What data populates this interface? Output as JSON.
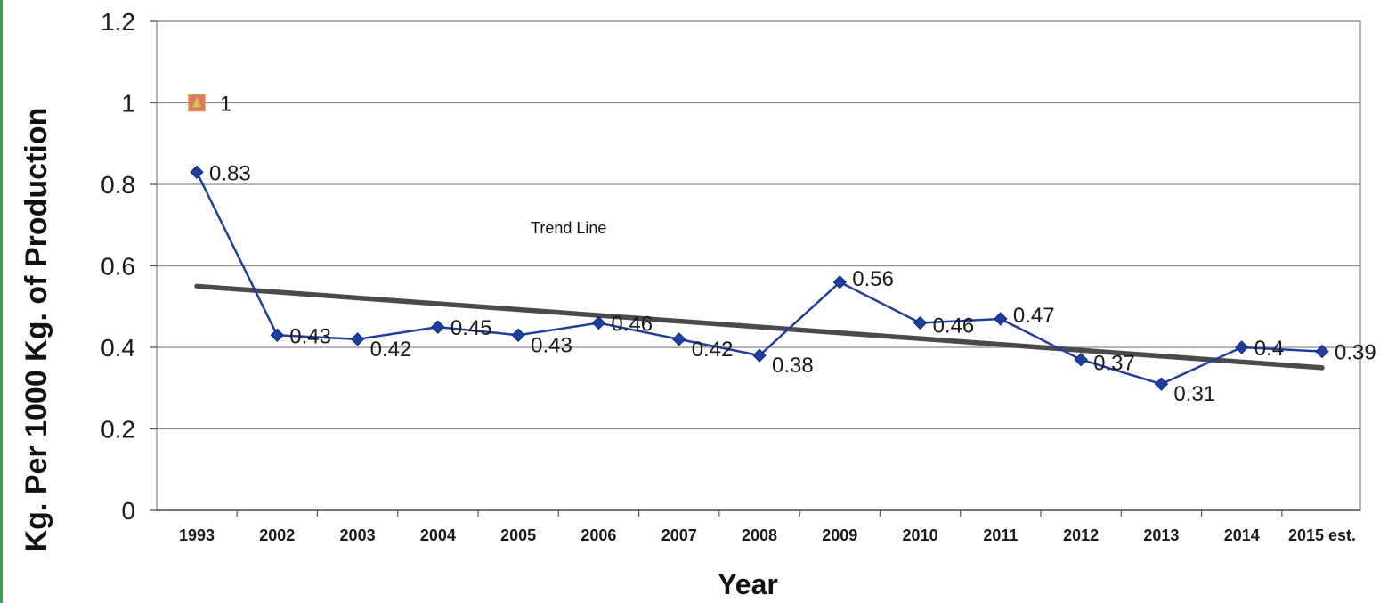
{
  "chart_data": {
    "type": "line",
    "title": "",
    "xlabel": "Year",
    "ylabel": "Kg. Per 1000 Kg. of Production",
    "categories": [
      "1993",
      "2002",
      "2003",
      "2004",
      "2005",
      "2006",
      "2007",
      "2008",
      "2009",
      "2010",
      "2011",
      "2012",
      "2013",
      "2014",
      "2015 est."
    ],
    "ylim": [
      0,
      1.2
    ],
    "yticks": [
      "0",
      "0.2",
      "0.4",
      "0.6",
      "0.8",
      "1",
      "1.2"
    ],
    "grid": true,
    "series": [
      {
        "values": [
          0.83,
          0.43,
          0.42,
          0.45,
          0.43,
          0.46,
          0.42,
          0.38,
          0.56,
          0.46,
          0.47,
          0.37,
          0.31,
          0.4,
          0.39
        ],
        "labels": [
          "0.83",
          "0.43",
          "0.42",
          "0.45",
          "0.43",
          "0.46",
          "0.42",
          "0.38",
          "0.56",
          "0.46",
          "0.47",
          "0.37",
          "0.31",
          "0.4",
          "0.39"
        ],
        "color": "#1f3f9e",
        "marker": "diamond"
      },
      {
        "x": [
          "1993"
        ],
        "values": [
          1
        ],
        "labels": [
          "1"
        ],
        "color": "#e8736a",
        "marker": "square"
      }
    ],
    "trend_line": {
      "label": "Trend Line",
      "start": 0.55,
      "end": 0.35,
      "color": "#4a4a4a"
    }
  }
}
